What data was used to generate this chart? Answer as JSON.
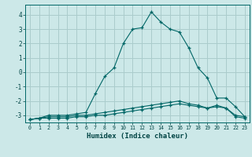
{
  "xlabel": "Humidex (Indice chaleur)",
  "background_color": "#cce8e8",
  "grid_color": "#aacccc",
  "line_color": "#006666",
  "xlim": [
    -0.5,
    23.5
  ],
  "ylim": [
    -3.5,
    4.7
  ],
  "xticks": [
    0,
    1,
    2,
    3,
    4,
    5,
    6,
    7,
    8,
    9,
    10,
    11,
    12,
    13,
    14,
    15,
    16,
    17,
    18,
    19,
    20,
    21,
    22,
    23
  ],
  "yticks": [
    -3,
    -2,
    -1,
    0,
    1,
    2,
    3,
    4
  ],
  "series1": [
    -3.3,
    -3.2,
    -3.0,
    -3.0,
    -3.0,
    -2.9,
    -2.8,
    -1.5,
    -0.3,
    0.3,
    2.0,
    3.0,
    3.1,
    4.2,
    3.5,
    3.0,
    2.8,
    1.7,
    0.3,
    -0.4,
    -1.8,
    -1.8,
    -2.4,
    -3.1
  ],
  "series2": [
    -3.3,
    -3.2,
    -3.1,
    -3.1,
    -3.1,
    -3.0,
    -3.0,
    -2.9,
    -2.8,
    -2.7,
    -2.6,
    -2.5,
    -2.4,
    -2.3,
    -2.2,
    -2.1,
    -2.0,
    -2.2,
    -2.3,
    -2.5,
    -2.3,
    -2.5,
    -3.0,
    -3.1
  ],
  "series3": [
    -3.3,
    -3.2,
    -3.2,
    -3.2,
    -3.2,
    -3.1,
    -3.1,
    -3.0,
    -3.0,
    -2.9,
    -2.8,
    -2.7,
    -2.6,
    -2.5,
    -2.4,
    -2.3,
    -2.2,
    -2.3,
    -2.4,
    -2.5,
    -2.4,
    -2.5,
    -3.1,
    -3.2
  ]
}
